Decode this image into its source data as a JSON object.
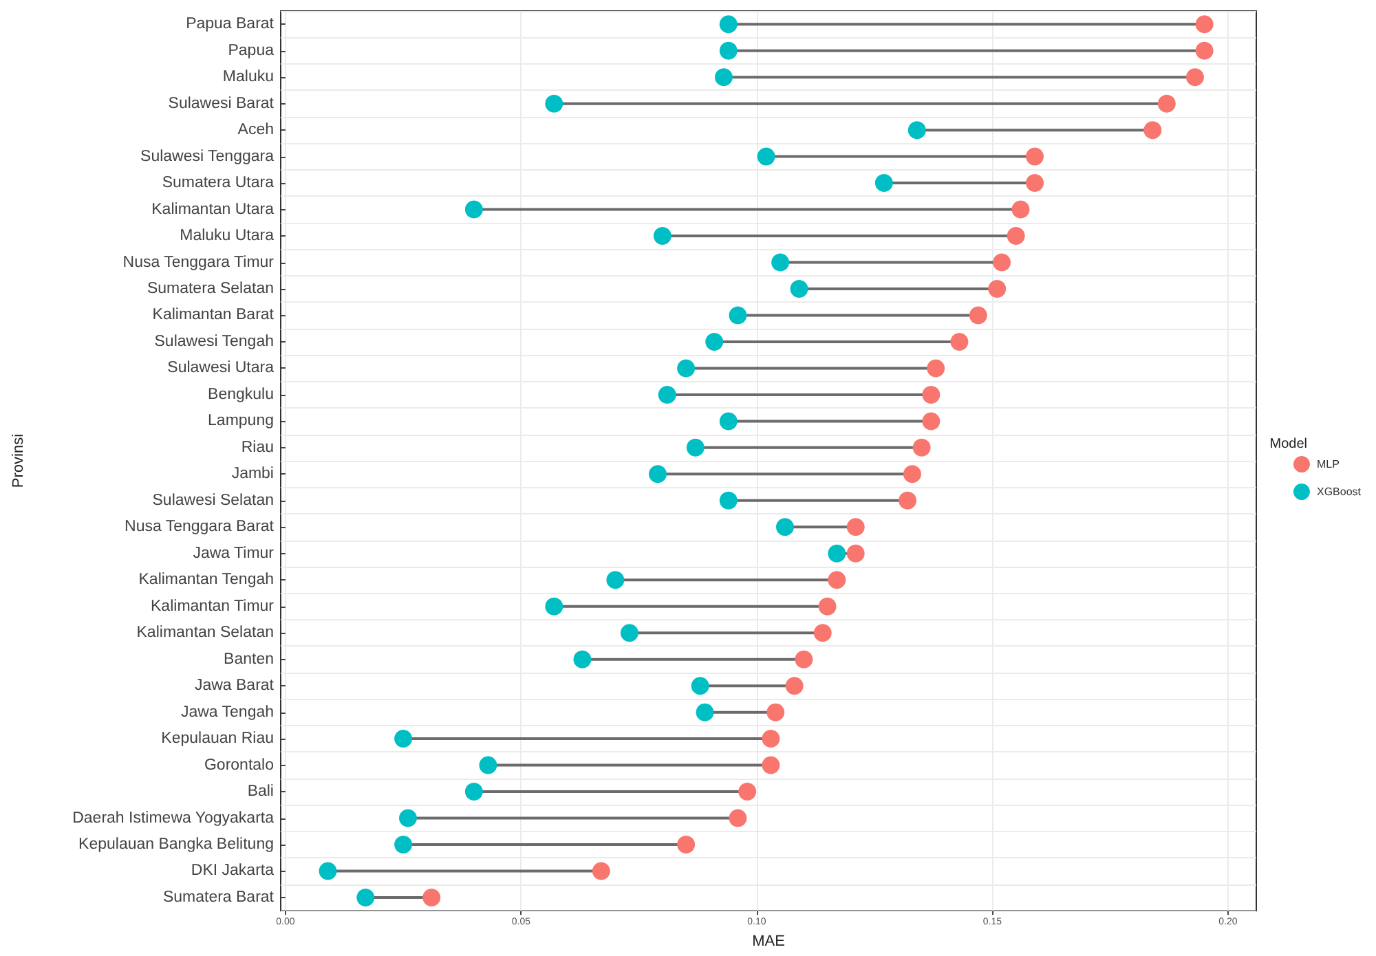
{
  "chart_data": {
    "type": "scatter",
    "orientation": "horizontal",
    "xlabel": "MAE",
    "ylabel": "Provinsi",
    "legend_title": "Model",
    "legend": "right",
    "grid": true,
    "marker": "circle",
    "categories": [
      "Papua Barat",
      "Papua",
      "Maluku",
      "Sulawesi Barat",
      "Aceh",
      "Sulawesi Tenggara",
      "Sumatera Utara",
      "Kalimantan Utara",
      "Maluku Utara",
      "Nusa Tenggara Timur",
      "Sumatera Selatan",
      "Kalimantan Barat",
      "Sulawesi Tengah",
      "Sulawesi Utara",
      "Bengkulu",
      "Lampung",
      "Riau",
      "Jambi",
      "Sulawesi Selatan",
      "Nusa Tenggara Barat",
      "Jawa Timur",
      "Kalimantan Tengah",
      "Kalimantan Timur",
      "Kalimantan Selatan",
      "Banten",
      "Jawa Barat",
      "Jawa Tengah",
      "Kepulauan Riau",
      "Gorontalo",
      "Bali",
      "Daerah Istimewa Yogyakarta",
      "Kepulauan Bangka Belitung",
      "DKI Jakarta",
      "Sumatera Barat"
    ],
    "xlim": [
      -0.001,
      0.206
    ],
    "xticks": [
      {
        "value": 0,
        "label": "0.00"
      },
      0.05,
      {
        "value": 0.1,
        "label": "0.10"
      },
      0.15,
      {
        "value": 0.2,
        "label": "0.20"
      }
    ],
    "series": [
      {
        "name": "MLP",
        "color": "#f8766d",
        "values": [
          0.195,
          0.195,
          0.193,
          0.187,
          0.184,
          0.159,
          0.159,
          0.156,
          0.155,
          0.152,
          0.151,
          0.147,
          0.143,
          0.138,
          0.137,
          0.137,
          0.135,
          0.133,
          0.132,
          0.121,
          0.121,
          0.117,
          0.115,
          0.114,
          0.11,
          0.108,
          0.104,
          0.103,
          0.103,
          0.098,
          0.096,
          0.085,
          0.067,
          0.031
        ]
      },
      {
        "name": "XGBoost",
        "color": "#00bfc4",
        "values": [
          0.094,
          0.094,
          0.093,
          0.057,
          0.134,
          0.102,
          0.127,
          0.04,
          0.08,
          0.105,
          0.109,
          0.096,
          0.091,
          0.085,
          0.081,
          0.094,
          0.087,
          0.079,
          0.094,
          0.106,
          0.117,
          0.07,
          0.057,
          0.073,
          0.063,
          0.088,
          0.089,
          0.025,
          0.043,
          0.04,
          0.026,
          0.025,
          0.009,
          0.017
        ]
      }
    ]
  }
}
